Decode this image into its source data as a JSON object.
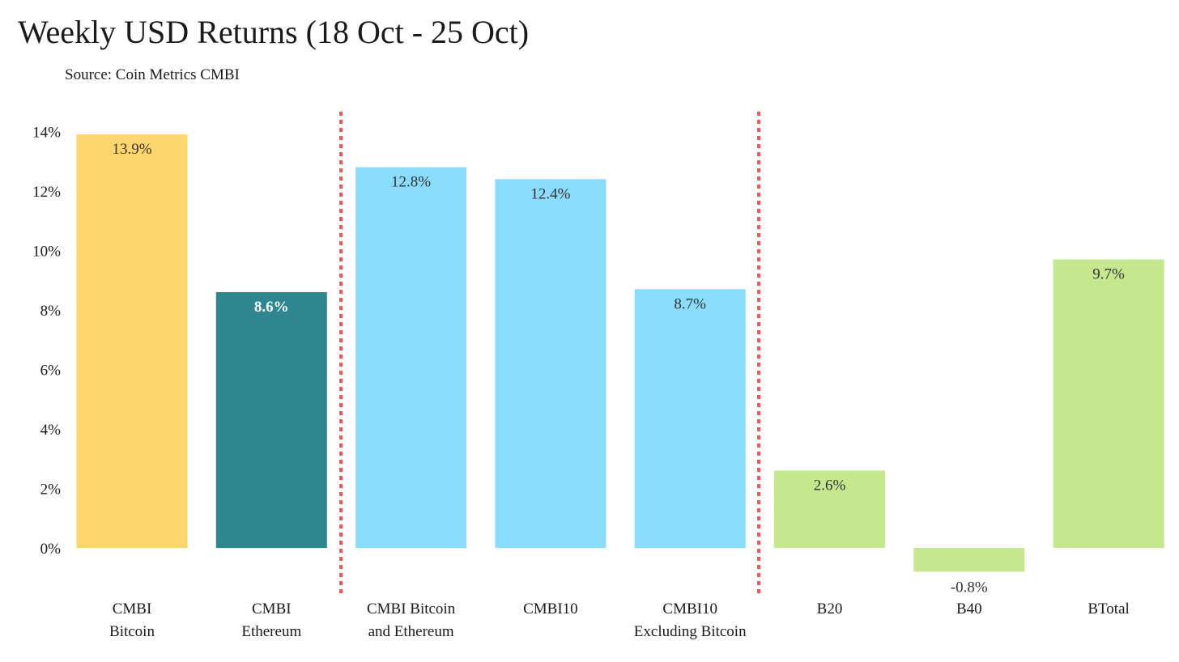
{
  "title": "Weekly USD Returns (18 Oct - 25 Oct)",
  "subtitle": "Source: Coin Metrics CMBI",
  "chart_data": {
    "type": "bar",
    "title": "Weekly USD Returns (18 Oct - 25 Oct)",
    "subtitle": "Source: Coin Metrics CMBI",
    "xlabel": "",
    "ylabel": "",
    "ylim": [
      -2,
      14
    ],
    "yticks": [
      0,
      2,
      4,
      6,
      8,
      10,
      12,
      14
    ],
    "ytick_labels": [
      "0%",
      "2%",
      "4%",
      "6%",
      "8%",
      "10%",
      "12%",
      "14%"
    ],
    "grid": false,
    "legend": "none",
    "categories": [
      [
        "CMBI",
        "Bitcoin"
      ],
      [
        "CMBI",
        "Ethereum"
      ],
      [
        "CMBI Bitcoin",
        "and Ethereum"
      ],
      [
        "CMBI10"
      ],
      [
        "CMBI10",
        "Excluding Bitcoin"
      ],
      [
        "B20"
      ],
      [
        "B40"
      ],
      [
        "BTotal"
      ]
    ],
    "values": [
      13.9,
      8.6,
      12.8,
      12.4,
      8.7,
      2.6,
      -0.8,
      9.7
    ],
    "value_labels": [
      "13.9%",
      "8.6%",
      "12.8%",
      "12.4%",
      "8.7%",
      "2.6%",
      "-0.8%",
      "9.7%"
    ],
    "colors": [
      "#fdd76e",
      "#2e8790",
      "#8adcfc",
      "#8adcfc",
      "#8adcfc",
      "#c5e88e",
      "#c5e88e",
      "#c5e88e"
    ],
    "label_colors": [
      "#333333",
      "#ffffff",
      "#333333",
      "#333333",
      "#333333",
      "#333333",
      "#333333",
      "#333333"
    ],
    "divider_color": "#ef5a5a"
  }
}
